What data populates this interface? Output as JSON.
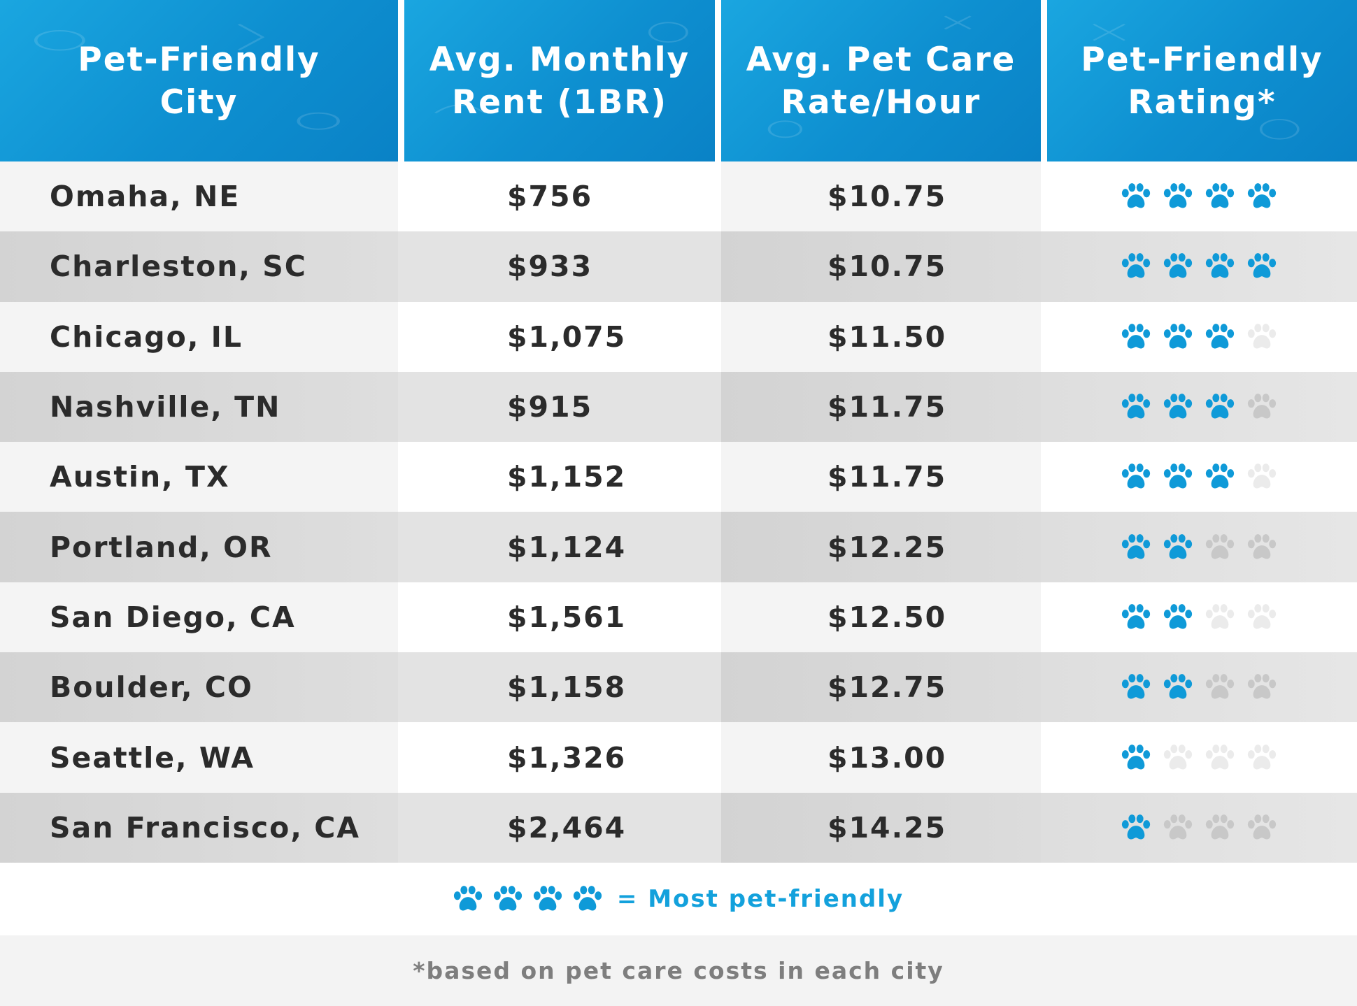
{
  "chart_data": {
    "type": "table",
    "columns": [
      "Pet-Friendly\nCity",
      "Avg. Monthly\nRent (1BR)",
      "Avg. Pet Care\nRate/Hour",
      "Pet-Friendly\nRating*"
    ],
    "rows": [
      {
        "city": "Omaha, NE",
        "rent": "$756",
        "rate": "$10.75",
        "rating": 4
      },
      {
        "city": "Charleston, SC",
        "rent": "$933",
        "rate": "$10.75",
        "rating": 4
      },
      {
        "city": "Chicago, IL",
        "rent": "$1,075",
        "rate": "$11.50",
        "rating": 3
      },
      {
        "city": "Nashville, TN",
        "rent": "$915",
        "rate": "$11.75",
        "rating": 3
      },
      {
        "city": "Austin, TX",
        "rent": "$1,152",
        "rate": "$11.75",
        "rating": 3
      },
      {
        "city": "Portland, OR",
        "rent": "$1,124",
        "rate": "$12.25",
        "rating": 2
      },
      {
        "city": "San Diego, CA",
        "rent": "$1,561",
        "rate": "$12.50",
        "rating": 2
      },
      {
        "city": "Boulder, CO",
        "rent": "$1,158",
        "rate": "$12.75",
        "rating": 2
      },
      {
        "city": "Seattle, WA",
        "rent": "$1,326",
        "rate": "$13.00",
        "rating": 1
      },
      {
        "city": "San Francisco, CA",
        "rent": "$2,464",
        "rate": "$14.25",
        "rating": 1
      }
    ],
    "rating_max": 4,
    "legend": "= Most pet-friendly",
    "legend_rating": 4,
    "footnote": "*based on pet care costs in each city"
  },
  "colors": {
    "header_blue": "#0e8fd0",
    "paw_active": "#0f9ad8",
    "paw_inactive": "#c8c8c8",
    "legend_text": "#13a1dc"
  },
  "icons": {
    "rating": "paw-print-icon"
  }
}
